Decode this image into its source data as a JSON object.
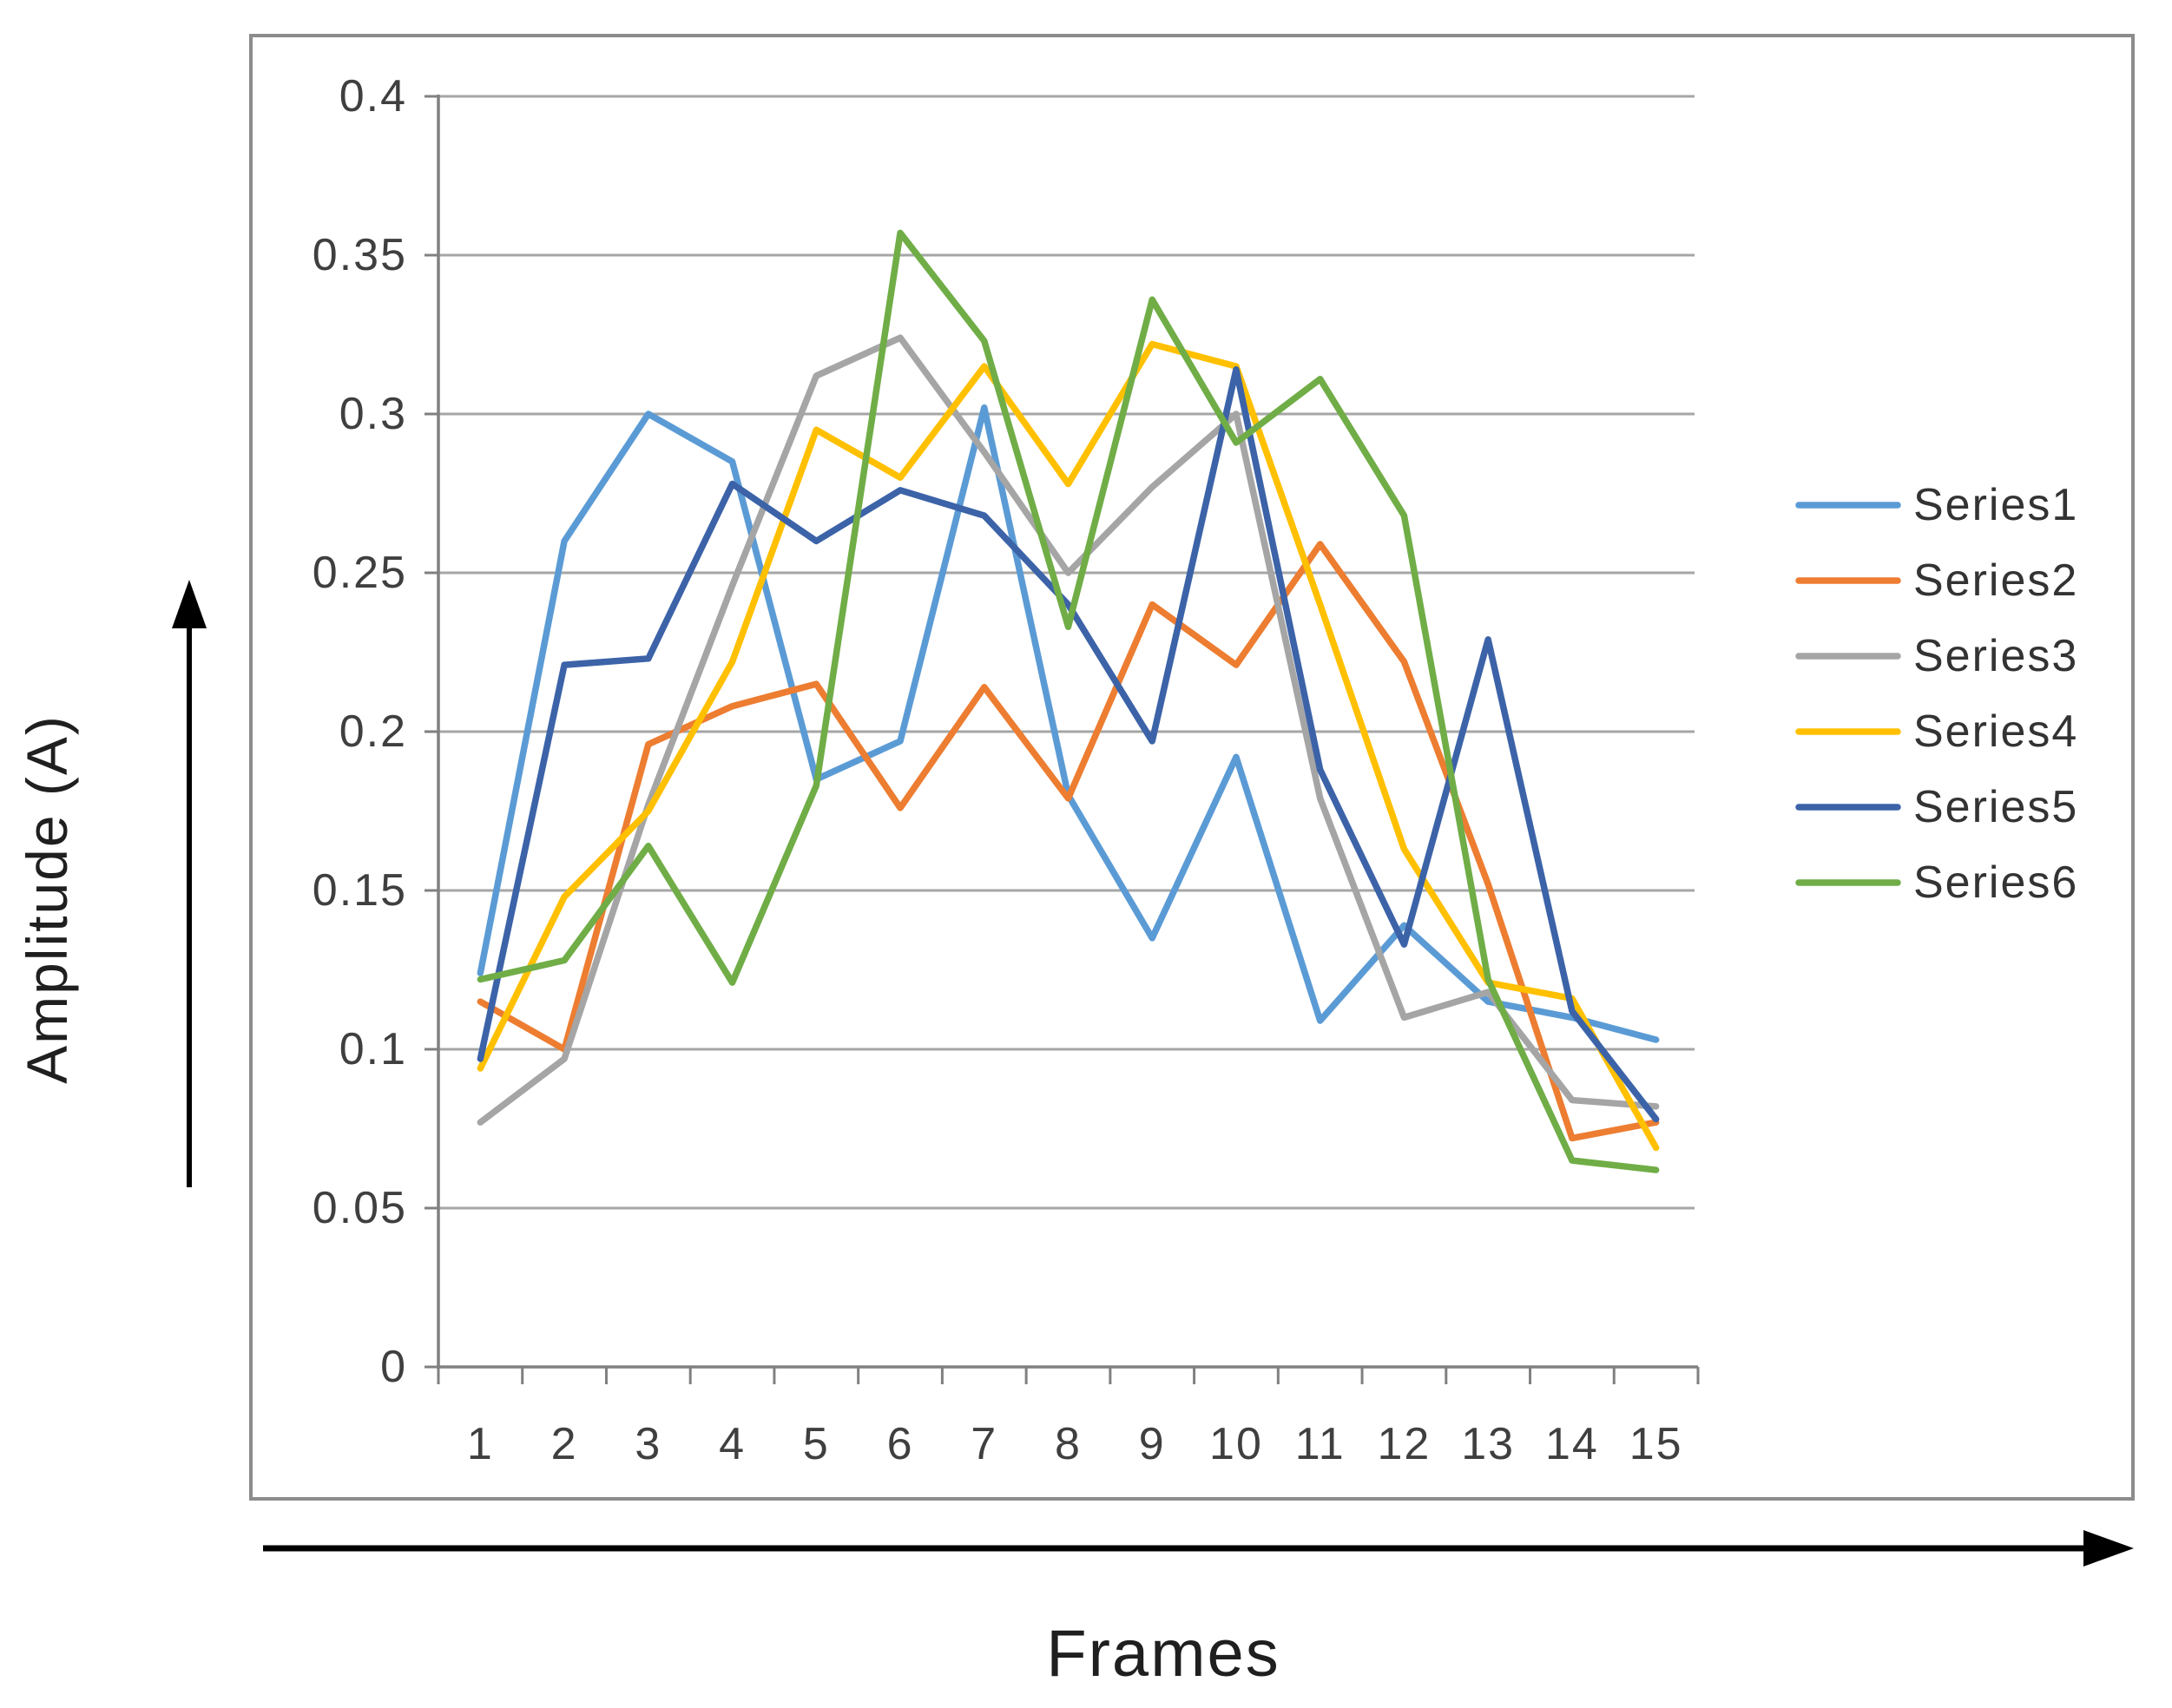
{
  "page": {
    "background": "#ffffff",
    "border_color": "#8c8c8c"
  },
  "labels": {
    "ylabel": "Amplitude (A)",
    "xlabel": "Frames"
  },
  "icons": {
    "y_axis_direction": "up-arrow",
    "x_axis_direction": "right-arrow"
  },
  "colors": {
    "gridline": "#a6a6a6",
    "axis": "#808080",
    "tick_text": "#3f3f3f",
    "legend_text": "#333333",
    "arrow": "#000000"
  },
  "chart_data": {
    "type": "line",
    "title": "",
    "xlabel": "Frames",
    "ylabel": "Amplitude (A)",
    "x": [
      1,
      2,
      3,
      4,
      5,
      6,
      7,
      8,
      9,
      10,
      11,
      12,
      13,
      14,
      15
    ],
    "ylim": [
      0,
      0.4
    ],
    "ytick_step": 0.05,
    "ytick_labels": [
      "0",
      "0.05",
      "0.1",
      "0.15",
      "0.2",
      "0.25",
      "0.3",
      "0.35",
      "0.4"
    ],
    "grid": "horizontal-only",
    "legend_position": "right",
    "series": [
      {
        "name": "Series1",
        "color": "#5B9BD5",
        "values": [
          0.124,
          0.26,
          0.3,
          0.285,
          0.185,
          0.197,
          0.302,
          0.18,
          0.135,
          0.192,
          0.109,
          0.139,
          0.115,
          0.11,
          0.103
        ]
      },
      {
        "name": "Series2",
        "color": "#ED7D31",
        "values": [
          0.115,
          0.1,
          0.196,
          0.208,
          0.215,
          0.176,
          0.214,
          0.179,
          0.24,
          0.221,
          0.259,
          0.222,
          0.152,
          0.072,
          0.077
        ]
      },
      {
        "name": "Series3",
        "color": "#A5A5A5",
        "values": [
          0.077,
          0.097,
          0.177,
          0.246,
          0.312,
          0.324,
          0.288,
          0.25,
          0.277,
          0.3,
          0.179,
          0.11,
          0.118,
          0.084,
          0.082
        ]
      },
      {
        "name": "Series4",
        "color": "#FFC000",
        "values": [
          0.094,
          0.148,
          0.175,
          0.222,
          0.295,
          0.28,
          0.315,
          0.278,
          0.322,
          0.315,
          0.24,
          0.163,
          0.121,
          0.116,
          0.069
        ]
      },
      {
        "name": "Series5",
        "color": "#3C63A8",
        "values": [
          0.097,
          0.221,
          0.223,
          0.278,
          0.26,
          0.276,
          0.268,
          0.24,
          0.197,
          0.314,
          0.188,
          0.133,
          0.229,
          0.112,
          0.078
        ]
      },
      {
        "name": "Series6",
        "color": "#70AD47",
        "values": [
          0.122,
          0.128,
          0.164,
          0.121,
          0.183,
          0.357,
          0.323,
          0.233,
          0.336,
          0.291,
          0.311,
          0.268,
          0.122,
          0.065,
          0.062
        ]
      }
    ]
  }
}
